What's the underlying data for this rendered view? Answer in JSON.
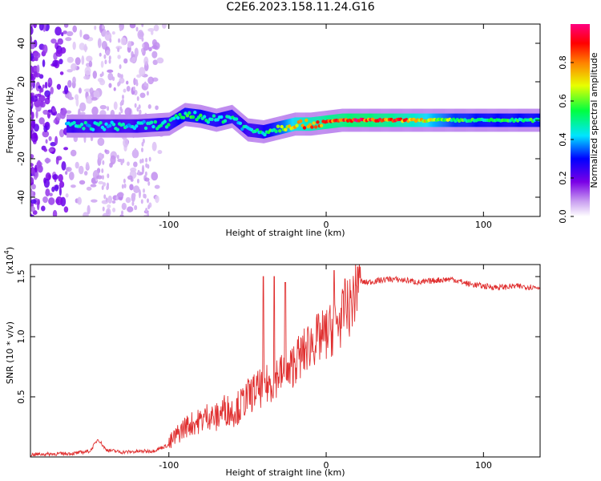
{
  "title": "C2E6.2023.158.11.24.G16",
  "chart_data": [
    {
      "type": "heatmap",
      "title": "",
      "xlabel": "Height of straight line (km)",
      "ylabel": "Frequency (Hz)",
      "xlim": [
        -188,
        136
      ],
      "ylim": [
        -50,
        50
      ],
      "x_ticks": [
        -100,
        0,
        100
      ],
      "y_ticks": [
        -40,
        -20,
        0,
        20,
        40
      ],
      "colorbar": {
        "label": "Normalized spectral amplitude",
        "range": [
          0,
          1
        ],
        "ticks": [
          "0.0",
          "0.2",
          "0.4",
          "0.6",
          "0.8"
        ],
        "colors": [
          "#ffffff",
          "#c89cf0",
          "#7a00e6",
          "#0000ff",
          "#00e5ff",
          "#00ff40",
          "#e8ff00",
          "#ff8000",
          "#ff0000",
          "#ff0080"
        ]
      },
      "ridge": [
        {
          "x": -160,
          "y": -3,
          "amp": 0.45
        },
        {
          "x": -140,
          "y": -3,
          "amp": 0.45
        },
        {
          "x": -120,
          "y": -3,
          "amp": 0.45
        },
        {
          "x": -100,
          "y": -2,
          "amp": 0.5
        },
        {
          "x": -90,
          "y": 3,
          "amp": 0.55
        },
        {
          "x": -80,
          "y": 2,
          "amp": 0.55
        },
        {
          "x": -70,
          "y": 0,
          "amp": 0.5
        },
        {
          "x": -60,
          "y": 2,
          "amp": 0.5
        },
        {
          "x": -50,
          "y": -5,
          "amp": 0.45
        },
        {
          "x": -40,
          "y": -6,
          "amp": 0.5
        },
        {
          "x": -30,
          "y": -4,
          "amp": 0.6
        },
        {
          "x": -20,
          "y": -2,
          "amp": 0.8
        },
        {
          "x": -10,
          "y": -2,
          "amp": 0.85
        },
        {
          "x": 0,
          "y": -1,
          "amp": 0.9
        },
        {
          "x": 10,
          "y": 0,
          "amp": 0.92
        },
        {
          "x": 20,
          "y": 0,
          "amp": 0.95
        },
        {
          "x": 40,
          "y": 0,
          "amp": 0.9
        },
        {
          "x": 60,
          "y": 0,
          "amp": 0.8
        },
        {
          "x": 80,
          "y": 0,
          "amp": 0.6
        },
        {
          "x": 100,
          "y": 0,
          "amp": 0.55
        },
        {
          "x": 120,
          "y": 0,
          "amp": 0.55
        },
        {
          "x": 136,
          "y": 0,
          "amp": 0.55
        }
      ]
    },
    {
      "type": "line",
      "title": "",
      "xlabel": "Height of straight line (km)",
      "ylabel": "SNR (10 * v/v)",
      "y_scale_label": "(x10",
      "y_scale_exp": "4",
      "y_scale_close": ")",
      "xlim": [
        -188,
        136
      ],
      "ylim": [
        0,
        1.6
      ],
      "x_ticks": [
        -100,
        0,
        100
      ],
      "y_ticks": [
        0.5,
        1.0,
        1.5
      ],
      "color": "#e03030",
      "series": [
        {
          "x": [
            -188,
            -160,
            -150,
            -145,
            -140,
            -130,
            -110,
            -100,
            -95,
            -90,
            -85,
            -80,
            -75,
            -70,
            -65,
            -60,
            -55,
            -50,
            -45,
            -40,
            -35,
            -30,
            -25,
            -20,
            -15,
            -10,
            -5,
            0,
            5,
            10,
            15,
            18,
            20,
            22,
            25,
            30,
            40,
            50,
            60,
            70,
            80,
            90,
            100,
            110,
            120,
            136
          ],
          "y": [
            0.02,
            0.03,
            0.05,
            0.15,
            0.06,
            0.04,
            0.05,
            0.1,
            0.18,
            0.25,
            0.28,
            0.3,
            0.35,
            0.32,
            0.4,
            0.38,
            0.42,
            0.5,
            0.55,
            0.58,
            0.62,
            0.7,
            0.65,
            0.8,
            0.85,
            0.95,
            0.98,
            1.02,
            1.08,
            1.15,
            1.25,
            1.35,
            1.42,
            1.46,
            1.45,
            1.46,
            1.48,
            1.47,
            1.45,
            1.47,
            1.48,
            1.44,
            1.42,
            1.41,
            1.42,
            1.41
          ]
        }
      ],
      "spikes": [
        {
          "x": -40,
          "y": 1.5
        },
        {
          "x": -33,
          "y": 1.5
        },
        {
          "x": -26,
          "y": 1.45
        },
        {
          "x": 5,
          "y": 1.55
        },
        {
          "x": 12,
          "y": 1.48
        },
        {
          "x": 20,
          "y": 1.58
        }
      ]
    }
  ]
}
